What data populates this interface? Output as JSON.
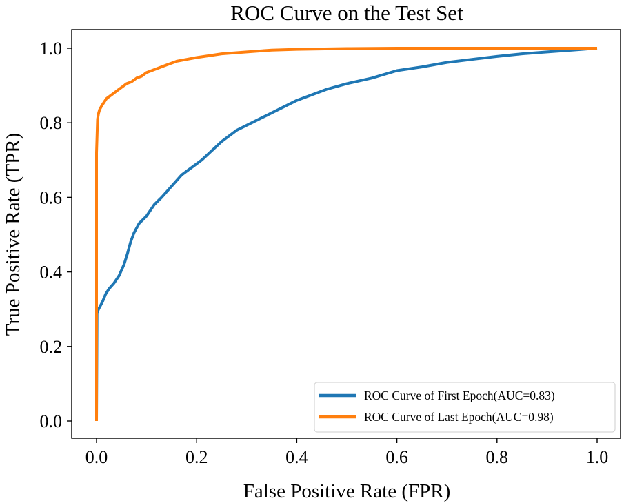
{
  "chart_data": {
    "type": "line",
    "title": "ROC Curve on the Test Set",
    "xlabel": "False Positive Rate (FPR)",
    "ylabel": "True Positive Rate (TPR)",
    "xlim": [
      0.0,
      1.0
    ],
    "ylim": [
      0.0,
      1.0
    ],
    "xticks": [
      "0.0",
      "0.2",
      "0.4",
      "0.6",
      "0.8",
      "1.0"
    ],
    "yticks": [
      "0.0",
      "0.2",
      "0.4",
      "0.6",
      "0.8",
      "1.0"
    ],
    "grid": false,
    "legend_position": "lower-right",
    "series": [
      {
        "name": "ROC Curve of First Epoch(AUC=0.83)",
        "color": "#1f77b4",
        "x": [
          0.0,
          0.001,
          0.004,
          0.008,
          0.012,
          0.018,
          0.025,
          0.035,
          0.045,
          0.055,
          0.062,
          0.068,
          0.075,
          0.085,
          0.1,
          0.115,
          0.13,
          0.15,
          0.17,
          0.19,
          0.21,
          0.23,
          0.25,
          0.28,
          0.31,
          0.34,
          0.37,
          0.4,
          0.43,
          0.46,
          0.5,
          0.55,
          0.6,
          0.65,
          0.7,
          0.75,
          0.8,
          0.85,
          0.9,
          0.95,
          1.0
        ],
        "y": [
          0.0,
          0.29,
          0.3,
          0.31,
          0.32,
          0.34,
          0.355,
          0.37,
          0.39,
          0.42,
          0.45,
          0.48,
          0.505,
          0.53,
          0.55,
          0.58,
          0.6,
          0.63,
          0.66,
          0.68,
          0.7,
          0.725,
          0.75,
          0.78,
          0.8,
          0.82,
          0.84,
          0.86,
          0.875,
          0.89,
          0.905,
          0.92,
          0.94,
          0.95,
          0.962,
          0.97,
          0.978,
          0.985,
          0.99,
          0.995,
          1.0
        ]
      },
      {
        "name": "ROC Curve of Last Epoch(AUC=0.98)",
        "color": "#ff7f0e",
        "x": [
          0.0,
          0.0,
          0.002,
          0.004,
          0.006,
          0.01,
          0.015,
          0.02,
          0.03,
          0.04,
          0.05,
          0.06,
          0.07,
          0.08,
          0.09,
          0.1,
          0.12,
          0.14,
          0.16,
          0.18,
          0.2,
          0.25,
          0.3,
          0.35,
          0.4,
          0.5,
          0.6,
          0.8,
          1.0
        ],
        "y": [
          0.0,
          0.72,
          0.81,
          0.825,
          0.835,
          0.845,
          0.855,
          0.865,
          0.875,
          0.885,
          0.895,
          0.905,
          0.91,
          0.92,
          0.925,
          0.935,
          0.945,
          0.955,
          0.965,
          0.97,
          0.975,
          0.985,
          0.99,
          0.995,
          0.997,
          0.999,
          1.0,
          1.0,
          1.0
        ]
      }
    ]
  }
}
